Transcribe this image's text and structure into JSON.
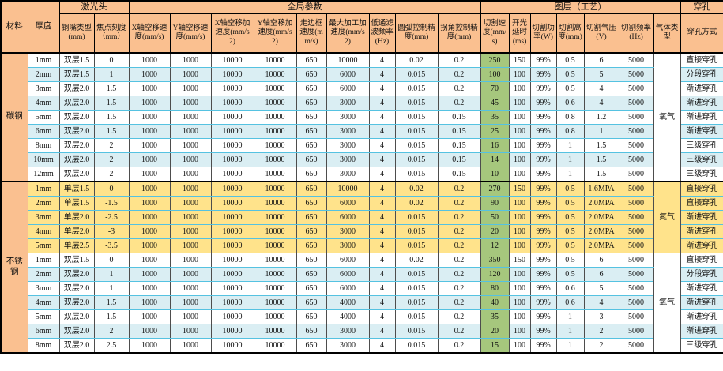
{
  "colors": {
    "header_bg": "#FAC090",
    "alt_row_bg": "#DAEEF3",
    "nitrogen_section_bg": "#FFE38B",
    "cut_speed_col_bg": "#A6C77D",
    "grid_line": "#55C2E1",
    "frame_line": "#000000"
  },
  "table": {
    "corner_headers": {
      "material": "材料",
      "thickness": "厚度"
    },
    "groups": [
      {
        "label": "激光头",
        "span": 2
      },
      {
        "label": "全局参数",
        "span": 9
      },
      {
        "label": "图层（工艺）",
        "span": 7
      },
      {
        "label": "穿孔",
        "span": 1
      }
    ],
    "columns": [
      "铜嘴类型(mm)",
      "焦点刻度（mm）",
      "X轴空移速度(mm/s)",
      "Y轴空移速度(mm/s)",
      "X轴空移加速度(mm/s2)",
      "Y轴空移加速度(mm/s2)",
      "走边框速度(mm/s)",
      "最大加工加速度(mm/s2)",
      "低通滤波频率(Hz)",
      "圆弧控制精度(mm)",
      "拐角控制精度(mm)",
      "切割速度(mm/s)",
      "开光延时(ms)",
      "切割功率(W)",
      "切割高度(mm)",
      "切割气压(V)",
      "切割频率(Hz)",
      "气体类型",
      "穿孔方式"
    ],
    "material_spans": [
      {
        "label": "碳钢",
        "start": 0,
        "count": 9
      },
      {
        "label": "不锈钢",
        "start": 9,
        "count": 12
      }
    ],
    "gas_spans": [
      {
        "label": "氧气",
        "start": 0,
        "count": 9,
        "bg": "white"
      },
      {
        "label": "氮气",
        "start": 9,
        "count": 5,
        "bg": "yellow"
      },
      {
        "label": "氧气",
        "start": 14,
        "count": 7,
        "bg": "white"
      }
    ],
    "rows": [
      {
        "thickness": "1mm",
        "nozzle": "双层1.5",
        "focus": "0",
        "global": [
          "1000",
          "1000",
          "10000",
          "10000",
          "650",
          "10000",
          "4",
          "0.02",
          "0.2"
        ],
        "speed": "250",
        "delay": "150",
        "power": "99%",
        "height": "0.5",
        "pressure": "6",
        "freq": "5000",
        "pierce": "直接穿孔",
        "bg": "white"
      },
      {
        "thickness": "2mm",
        "nozzle": "双层1.5",
        "focus": "1",
        "global": [
          "1000",
          "1000",
          "10000",
          "10000",
          "650",
          "6000",
          "4",
          "0.015",
          "0.2"
        ],
        "speed": "100",
        "delay": "100",
        "power": "99%",
        "height": "0.5",
        "pressure": "5",
        "freq": "5000",
        "pierce": "分段穿孔",
        "bg": "blue"
      },
      {
        "thickness": "3mm",
        "nozzle": "双层2.0",
        "focus": "1.5",
        "global": [
          "1000",
          "1000",
          "10000",
          "10000",
          "650",
          "6000",
          "4",
          "0.015",
          "0.2"
        ],
        "speed": "70",
        "delay": "100",
        "power": "99%",
        "height": "0.5",
        "pressure": "4",
        "freq": "5000",
        "pierce": "渐进穿孔",
        "bg": "white"
      },
      {
        "thickness": "4mm",
        "nozzle": "双层2.0",
        "focus": "1.5",
        "global": [
          "1000",
          "1000",
          "10000",
          "10000",
          "650",
          "3000",
          "4",
          "0.015",
          "0.2"
        ],
        "speed": "45",
        "delay": "100",
        "power": "99%",
        "height": "0.6",
        "pressure": "4",
        "freq": "5000",
        "pierce": "渐进穿孔",
        "bg": "blue"
      },
      {
        "thickness": "5mm",
        "nozzle": "双层2.0",
        "focus": "1.5",
        "global": [
          "1000",
          "1000",
          "10000",
          "10000",
          "650",
          "3000",
          "4",
          "0.015",
          "0.15"
        ],
        "speed": "35",
        "delay": "100",
        "power": "99%",
        "height": "0.8",
        "pressure": "1.2",
        "freq": "5000",
        "pierce": "渐进穿孔",
        "bg": "white"
      },
      {
        "thickness": "6mm",
        "nozzle": "双层2.0",
        "focus": "1.5",
        "global": [
          "1000",
          "1000",
          "10000",
          "10000",
          "650",
          "3000",
          "4",
          "0.015",
          "0.15"
        ],
        "speed": "25",
        "delay": "100",
        "power": "99%",
        "height": "0.8",
        "pressure": "1",
        "freq": "5000",
        "pierce": "渐进穿孔",
        "bg": "blue"
      },
      {
        "thickness": "8mm",
        "nozzle": "双层2.0",
        "focus": "2",
        "global": [
          "1000",
          "1000",
          "10000",
          "10000",
          "650",
          "3000",
          "4",
          "0.015",
          "0.15"
        ],
        "speed": "16",
        "delay": "100",
        "power": "99%",
        "height": "1",
        "pressure": "1.5",
        "freq": "5000",
        "pierce": "三级穿孔",
        "bg": "white"
      },
      {
        "thickness": "10mm",
        "nozzle": "双层2.0",
        "focus": "2",
        "global": [
          "1000",
          "1000",
          "10000",
          "10000",
          "650",
          "3000",
          "4",
          "0.015",
          "0.15"
        ],
        "speed": "14",
        "delay": "100",
        "power": "99%",
        "height": "1",
        "pressure": "1.5",
        "freq": "5000",
        "pierce": "三级穿孔",
        "bg": "blue"
      },
      {
        "thickness": "12mm",
        "nozzle": "双层2.0",
        "focus": "2",
        "global": [
          "1000",
          "1000",
          "10000",
          "10000",
          "650",
          "3000",
          "4",
          "0.015",
          "0.15"
        ],
        "speed": "10",
        "delay": "100",
        "power": "99%",
        "height": "1",
        "pressure": "1.5",
        "freq": "5000",
        "pierce": "三级穿孔",
        "bg": "white"
      },
      {
        "thickness": "1mm",
        "nozzle": "单层1.5",
        "focus": "0",
        "global": [
          "1000",
          "1000",
          "10000",
          "10000",
          "650",
          "10000",
          "4",
          "0.02",
          "0.2"
        ],
        "speed": "270",
        "delay": "150",
        "power": "99%",
        "height": "0.5",
        "pressure": "1.6MPA",
        "freq": "5000",
        "pierce": "直接穿孔",
        "bg": "yellow"
      },
      {
        "thickness": "2mm",
        "nozzle": "单层1.5",
        "focus": "-1.5",
        "global": [
          "1000",
          "1000",
          "10000",
          "10000",
          "650",
          "6000",
          "4",
          "0.02",
          "0.2"
        ],
        "speed": "90",
        "delay": "100",
        "power": "99%",
        "height": "0.5",
        "pressure": "2.0MPA",
        "freq": "5000",
        "pierce": "直接穿孔",
        "bg": "yellow"
      },
      {
        "thickness": "3mm",
        "nozzle": "单层2.0",
        "focus": "-2.5",
        "global": [
          "1000",
          "1000",
          "10000",
          "10000",
          "650",
          "6000",
          "4",
          "0.015",
          "0.2"
        ],
        "speed": "50",
        "delay": "100",
        "power": "99%",
        "height": "0.5",
        "pressure": "2.0MPA",
        "freq": "5000",
        "pierce": "渐进穿孔",
        "bg": "yellow"
      },
      {
        "thickness": "4mm",
        "nozzle": "单层2.0",
        "focus": "-3",
        "global": [
          "1000",
          "1000",
          "10000",
          "10000",
          "650",
          "3000",
          "4",
          "0.015",
          "0.2"
        ],
        "speed": "20",
        "delay": "100",
        "power": "99%",
        "height": "0.5",
        "pressure": "2.0MPA",
        "freq": "5000",
        "pierce": "渐进穿孔",
        "bg": "yellow"
      },
      {
        "thickness": "5mm",
        "nozzle": "单层2.5",
        "focus": "-3.5",
        "global": [
          "1000",
          "1000",
          "10000",
          "10000",
          "650",
          "3000",
          "4",
          "0.015",
          "0.2"
        ],
        "speed": "12",
        "delay": "100",
        "power": "99%",
        "height": "0.5",
        "pressure": "2.0MPA",
        "freq": "5000",
        "pierce": "渐进穿孔",
        "bg": "yellow"
      },
      {
        "thickness": "1mm",
        "nozzle": "双层1.5",
        "focus": "0",
        "global": [
          "1000",
          "1000",
          "10000",
          "10000",
          "650",
          "6000",
          "4",
          "0.02",
          "0.2"
        ],
        "speed": "350",
        "delay": "150",
        "power": "99%",
        "height": "0.5",
        "pressure": "6",
        "freq": "5000",
        "pierce": "直接穿孔",
        "bg": "white"
      },
      {
        "thickness": "2mm",
        "nozzle": "双层2.0",
        "focus": "1",
        "global": [
          "1000",
          "1000",
          "10000",
          "10000",
          "650",
          "6000",
          "4",
          "0.015",
          "0.2"
        ],
        "speed": "120",
        "delay": "100",
        "power": "99%",
        "height": "0.5",
        "pressure": "6",
        "freq": "5000",
        "pierce": "分段穿孔",
        "bg": "blue"
      },
      {
        "thickness": "3mm",
        "nozzle": "双层2.0",
        "focus": "1",
        "global": [
          "1000",
          "1000",
          "10000",
          "10000",
          "650",
          "6000",
          "4",
          "0.015",
          "0.2"
        ],
        "speed": "80",
        "delay": "100",
        "power": "99%",
        "height": "0.6",
        "pressure": "5",
        "freq": "5000",
        "pierce": "渐进穿孔",
        "bg": "white"
      },
      {
        "thickness": "4mm",
        "nozzle": "双层2.0",
        "focus": "1.5",
        "global": [
          "1000",
          "1000",
          "10000",
          "10000",
          "650",
          "4000",
          "4",
          "0.015",
          "0.2"
        ],
        "speed": "40",
        "delay": "100",
        "power": "99%",
        "height": "0.6",
        "pressure": "4",
        "freq": "5000",
        "pierce": "渐进穿孔",
        "bg": "blue"
      },
      {
        "thickness": "5mm",
        "nozzle": "双层2.0",
        "focus": "1.5",
        "global": [
          "1000",
          "1000",
          "10000",
          "10000",
          "650",
          "4000",
          "4",
          "0.015",
          "0.2"
        ],
        "speed": "35",
        "delay": "100",
        "power": "99%",
        "height": "1",
        "pressure": "3",
        "freq": "5000",
        "pierce": "渐进穿孔",
        "bg": "white"
      },
      {
        "thickness": "6mm",
        "nozzle": "双层2.0",
        "focus": "2",
        "global": [
          "1000",
          "1000",
          "10000",
          "10000",
          "650",
          "3000",
          "4",
          "0.015",
          "0.2"
        ],
        "speed": "20",
        "delay": "100",
        "power": "99%",
        "height": "1",
        "pressure": "2",
        "freq": "5000",
        "pierce": "渐进穿孔",
        "bg": "blue"
      },
      {
        "thickness": "8mm",
        "nozzle": "双层2.0",
        "focus": "2.5",
        "global": [
          "1000",
          "1000",
          "10000",
          "10000",
          "650",
          "3000",
          "4",
          "0.015",
          "0.2"
        ],
        "speed": "15",
        "delay": "100",
        "power": "99%",
        "height": "1",
        "pressure": "2",
        "freq": "5000",
        "pierce": "三级穿孔",
        "bg": "white"
      }
    ]
  }
}
